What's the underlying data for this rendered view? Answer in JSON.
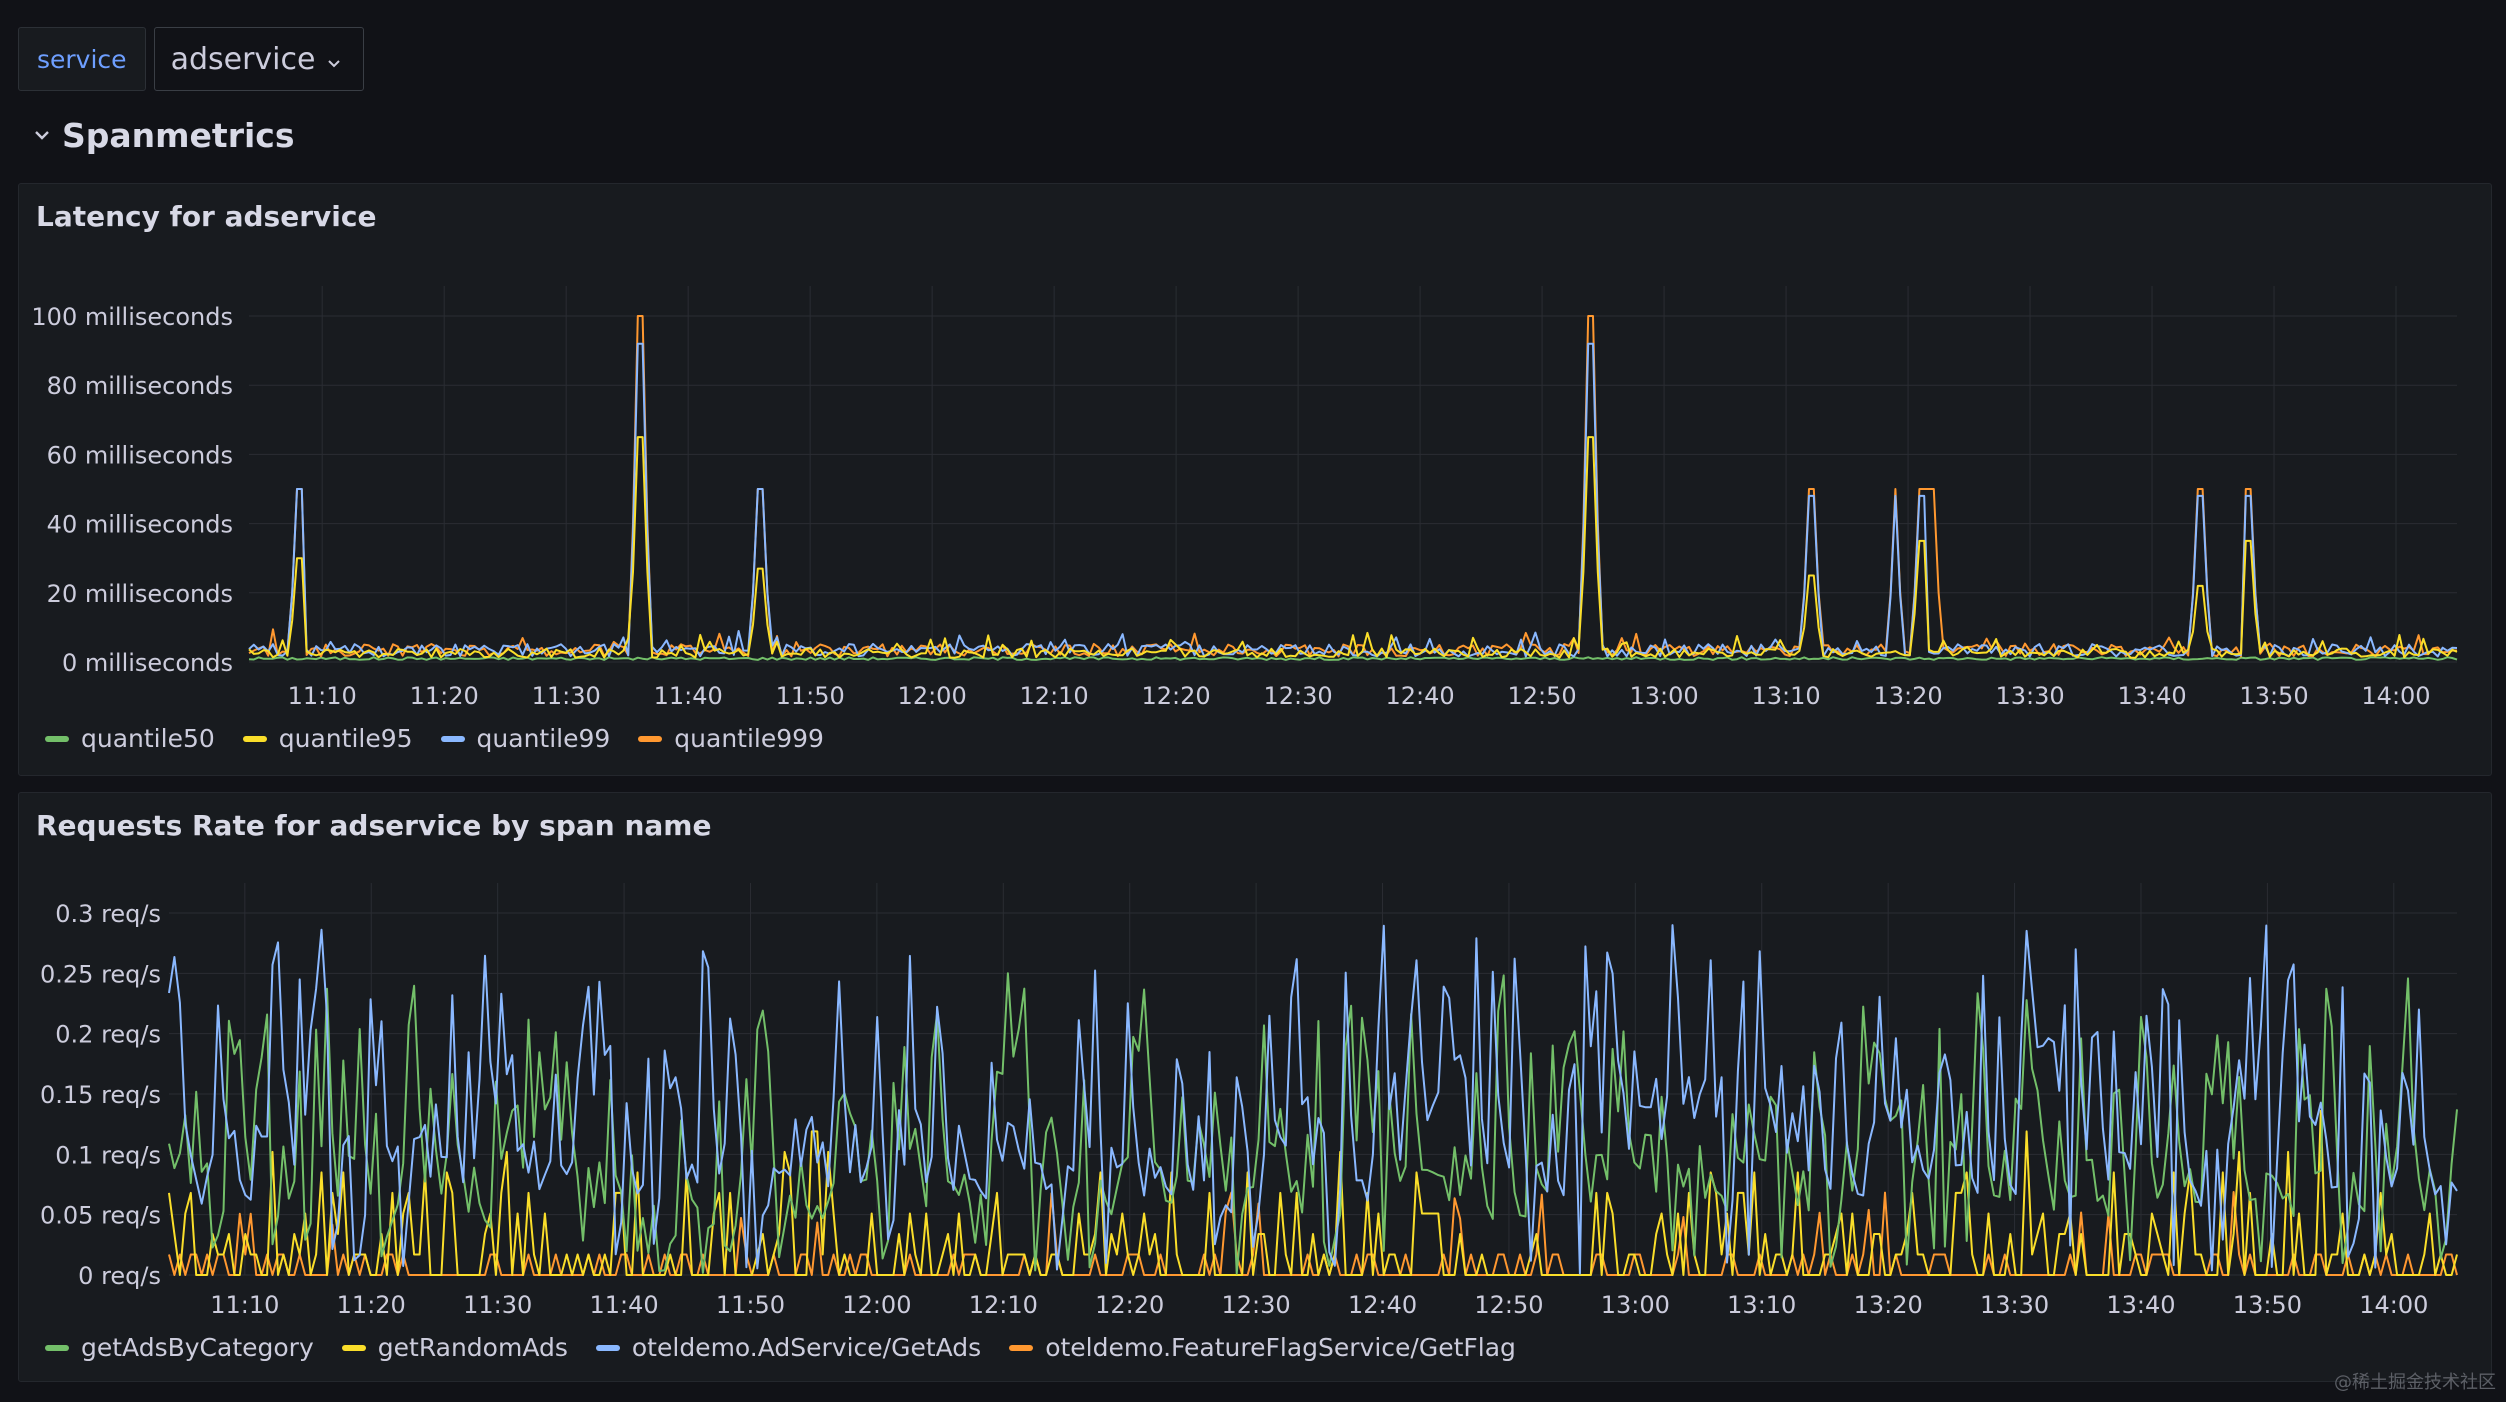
{
  "variables": {
    "label": "service",
    "value": "adservice"
  },
  "row": {
    "title": "Spanmetrics"
  },
  "panels": [
    {
      "title": "Latency for adservice",
      "yTicks": [
        "100 milliseconds",
        "80 milliseconds",
        "60 milliseconds",
        "40 milliseconds",
        "20 milliseconds",
        "0 milliseconds"
      ],
      "xTicks": [
        "11:10",
        "11:20",
        "11:30",
        "11:40",
        "11:50",
        "12:00",
        "12:10",
        "12:20",
        "12:30",
        "12:40",
        "12:50",
        "13:00",
        "13:10",
        "13:20",
        "13:30",
        "13:40",
        "13:50",
        "14:00"
      ],
      "legend": [
        {
          "label": "quantile50",
          "color": "#73bf69"
        },
        {
          "label": "quantile95",
          "color": "#fade2a"
        },
        {
          "label": "quantile99",
          "color": "#8ab8ff"
        },
        {
          "label": "quantile999",
          "color": "#ff9830"
        }
      ]
    },
    {
      "title": "Requests Rate for adservice by span name",
      "yTicks": [
        "0.3 req/s",
        "0.25 req/s",
        "0.2 req/s",
        "0.15 req/s",
        "0.1 req/s",
        "0.05 req/s",
        "0 req/s"
      ],
      "xTicks": [
        "11:10",
        "11:20",
        "11:30",
        "11:40",
        "11:50",
        "12:00",
        "12:10",
        "12:20",
        "12:30",
        "12:40",
        "12:50",
        "13:00",
        "13:10",
        "13:20",
        "13:30",
        "13:40",
        "13:50",
        "14:00"
      ],
      "legend": [
        {
          "label": "getAdsByCategory",
          "color": "#73bf69"
        },
        {
          "label": "getRandomAds",
          "color": "#fade2a"
        },
        {
          "label": "oteldemo.AdService/GetAds",
          "color": "#8ab8ff"
        },
        {
          "label": "oteldemo.FeatureFlagService/GetFlag",
          "color": "#ff9830"
        }
      ]
    }
  ],
  "chart_data": [
    {
      "type": "line",
      "title": "Latency for adservice",
      "ylabel": "",
      "ylim": [
        0,
        100
      ],
      "x_range": [
        "11:04",
        "14:05"
      ],
      "series": [
        {
          "name": "quantile50",
          "baseline": 1,
          "spikes": []
        },
        {
          "name": "quantile95",
          "baseline": 3,
          "spikes": [
            {
              "x": "11:08",
              "y": 30
            },
            {
              "x": "11:36",
              "y": 65
            },
            {
              "x": "11:46",
              "y": 27
            },
            {
              "x": "12:54",
              "y": 65
            },
            {
              "x": "13:12",
              "y": 25
            },
            {
              "x": "13:21",
              "y": 35
            },
            {
              "x": "13:44",
              "y": 22
            },
            {
              "x": "13:48",
              "y": 35
            }
          ]
        },
        {
          "name": "quantile99",
          "baseline": 4,
          "spikes": [
            {
              "x": "11:08",
              "y": 50
            },
            {
              "x": "11:36",
              "y": 92
            },
            {
              "x": "11:46",
              "y": 50
            },
            {
              "x": "12:54",
              "y": 92
            },
            {
              "x": "13:12",
              "y": 48
            },
            {
              "x": "13:19",
              "y": 48
            },
            {
              "x": "13:21",
              "y": 48
            },
            {
              "x": "13:44",
              "y": 48
            },
            {
              "x": "13:48",
              "y": 48
            }
          ]
        },
        {
          "name": "quantile999",
          "baseline": 4,
          "spikes": [
            {
              "x": "11:08",
              "y": 50
            },
            {
              "x": "11:36",
              "y": 100
            },
            {
              "x": "11:46",
              "y": 50
            },
            {
              "x": "12:54",
              "y": 100
            },
            {
              "x": "13:12",
              "y": 50
            },
            {
              "x": "13:19",
              "y": 50
            },
            {
              "x": "13:21",
              "y": 50
            },
            {
              "x": "13:22",
              "y": 50
            },
            {
              "x": "13:44",
              "y": 50
            },
            {
              "x": "13:48",
              "y": 50
            }
          ]
        }
      ]
    },
    {
      "type": "line",
      "title": "Requests Rate for adservice by span name",
      "ylabel": "",
      "ylim": [
        0,
        0.3
      ],
      "x_range": [
        "11:04",
        "14:05"
      ],
      "series": [
        {
          "name": "getAdsByCategory",
          "mean": 0.09,
          "max": 0.25
        },
        {
          "name": "getRandomAds",
          "mean": 0.04,
          "max": 0.14
        },
        {
          "name": "oteldemo.AdService/GetAds",
          "mean": 0.12,
          "max": 0.29
        },
        {
          "name": "oteldemo.FeatureFlagService/GetFlag",
          "mean": 0.015,
          "max": 0.07
        }
      ]
    }
  ],
  "watermark": "@稀土掘金技术社区"
}
